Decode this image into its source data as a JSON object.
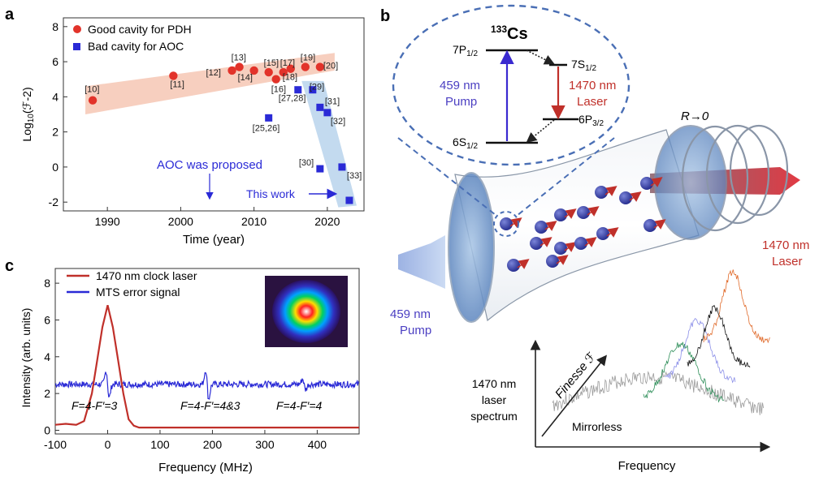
{
  "panels": {
    "a": {
      "label": "a",
      "legend": [
        "Good cavity for PDH",
        "Bad cavity for AOC"
      ],
      "xlabel": "Time (year)",
      "ylabel_prefix": "Log",
      "ylabel_sub": "10",
      "ylabel_suffix": "(ℱ-2)",
      "annotation_aoc": "AOC was proposed",
      "annotation_this_work": "This work",
      "refs_pdh": [
        "[10]",
        "[11]",
        "[12]",
        "[13]",
        "[14]",
        "[15]",
        "[16]",
        "[17]",
        "[18]",
        "[19]",
        "[20]"
      ],
      "refs_aoc": [
        "[25,26]",
        "[27,28]",
        "[29]",
        "[31]",
        "[32]",
        "[30]",
        "[33]"
      ],
      "xticks": [
        "1990",
        "2000",
        "2010",
        "2020"
      ],
      "yticks": [
        "-2",
        "0",
        "2",
        "4",
        "6",
        "8"
      ]
    },
    "b": {
      "label": "b",
      "atom": "Cs",
      "atom_mass": "133",
      "level_7p": "7P",
      "level_7p_sub": "1/2",
      "level_7s": "7S",
      "level_7s_sub": "1/2",
      "level_6s": "6S",
      "level_6s_sub": "1/2",
      "level_6p": "6P",
      "level_6p_sub": "3/2",
      "pump_line1": "459 nm",
      "pump_line2": "Pump",
      "laser_line1": "1470 nm",
      "laser_line2": "Laser",
      "reflectivity": "R→0",
      "out_laser_line1": "1470 nm",
      "out_laser_line2": "Laser",
      "in_pump_line1": "459 nm",
      "in_pump_line2": "Pump",
      "spectrum_label_1": "1470 nm",
      "spectrum_label_2": "laser",
      "spectrum_label_3": "spectrum",
      "finesse_label": "Finesse ℱ",
      "mirrorless_label": "Mirrorless",
      "frequency_label": "Frequency"
    },
    "c": {
      "label": "c",
      "legend": [
        "1470 nm clock laser",
        "MTS error signal"
      ],
      "xlabel": "Frequency (MHz)",
      "ylabel": "Intensity (arb. units)",
      "xticks": [
        "-100",
        "0",
        "100",
        "200",
        "300",
        "400"
      ],
      "yticks": [
        "0",
        "2",
        "4",
        "6",
        "8"
      ],
      "transitions": [
        "F=4-F′=3",
        "F=4-F′=4&3",
        "F=4-F′=4"
      ]
    }
  },
  "colors": {
    "pdh": "#e2332a",
    "aoc": "#2a2ad6",
    "band_pdh": "#f6c7b4",
    "band_aoc": "#b9d3ec",
    "clock": "#c0302a",
    "mts": "#2a2ad6",
    "dashed": "#4a6fb5",
    "purple_text": "#4b3fc2",
    "laser_text": "#c0302a"
  },
  "chart_data": [
    {
      "panel": "a",
      "type": "scatter",
      "xlabel": "Time (year)",
      "ylabel": "Log10(ℱ-2)",
      "xlim": [
        1984,
        2025
      ],
      "ylim": [
        -2.5,
        8.5
      ],
      "legend_position": "top-left",
      "series": [
        {
          "name": "Good cavity for PDH",
          "marker": "circle",
          "points": [
            {
              "x": 1988,
              "y": 3.8,
              "label": "[10]"
            },
            {
              "x": 1999,
              "y": 5.2,
              "label": "[11]"
            },
            {
              "x": 2007,
              "y": 5.5,
              "label": "[12]"
            },
            {
              "x": 2008,
              "y": 5.7,
              "label": "[13]"
            },
            {
              "x": 2010,
              "y": 5.5,
              "label": "[14]"
            },
            {
              "x": 2012,
              "y": 5.4,
              "label": "[15]"
            },
            {
              "x": 2013,
              "y": 5.0,
              "label": "[16]"
            },
            {
              "x": 2014,
              "y": 5.4,
              "label": "[17]"
            },
            {
              "x": 2015,
              "y": 5.6,
              "label": "[18]"
            },
            {
              "x": 2017,
              "y": 5.7,
              "label": "[19]"
            },
            {
              "x": 2019,
              "y": 5.7,
              "label": "[20]"
            }
          ]
        },
        {
          "name": "Bad cavity for AOC",
          "marker": "square",
          "points": [
            {
              "x": 2012,
              "y": 2.8,
              "label": "[25,26]"
            },
            {
              "x": 2016,
              "y": 4.4,
              "label": "[27,28]"
            },
            {
              "x": 2018,
              "y": 4.4,
              "label": "[29]"
            },
            {
              "x": 2019,
              "y": 3.4,
              "label": "[31]"
            },
            {
              "x": 2020,
              "y": 3.1,
              "label": "[32]"
            },
            {
              "x": 2019,
              "y": -0.1,
              "label": "[30]"
            },
            {
              "x": 2022,
              "y": 0.0,
              "label": "[33]"
            },
            {
              "x": 2023,
              "y": -1.9,
              "label": "This work"
            }
          ]
        }
      ],
      "annotations": [
        {
          "x": 2005,
          "text": "AOC was proposed"
        }
      ]
    },
    {
      "panel": "c",
      "type": "line",
      "xlabel": "Frequency (MHz)",
      "ylabel": "Intensity (arb. units)",
      "xlim": [
        -100,
        480
      ],
      "ylim": [
        -0.2,
        8.8
      ],
      "legend_position": "top-left",
      "series": [
        {
          "name": "1470 nm clock laser",
          "x": [
            -100,
            -80,
            -60,
            -45,
            -30,
            -20,
            -10,
            0,
            10,
            20,
            30,
            40,
            50,
            60,
            80,
            120,
            200,
            300,
            400,
            480
          ],
          "y": [
            0.3,
            0.35,
            0.3,
            0.5,
            2.0,
            3.8,
            5.6,
            6.8,
            5.6,
            3.8,
            2.0,
            0.6,
            0.25,
            0.15,
            0.15,
            0.15,
            0.15,
            0.15,
            0.15,
            0.15
          ]
        },
        {
          "name": "MTS error signal",
          "baseline": 2.5,
          "features": [
            {
              "x": 0,
              "amplitude": 1.0
            },
            {
              "x": 190,
              "amplitude": 1.1
            },
            {
              "x": 375,
              "amplitude": 0.4
            }
          ]
        }
      ]
    }
  ]
}
